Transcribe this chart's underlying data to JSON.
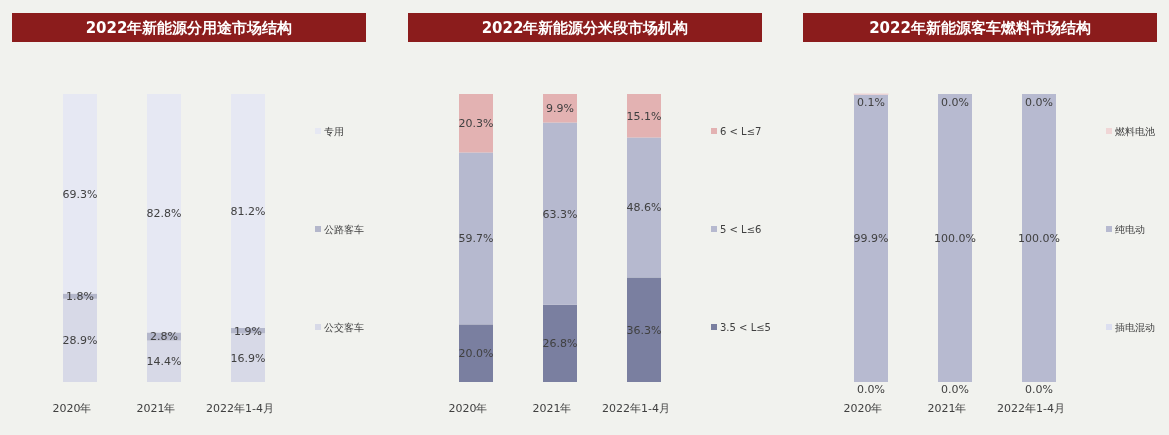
{
  "chart_data": [
    {
      "type": "bar",
      "title": "2022年新能源分用途市场结构",
      "stacked": true,
      "legend": "right",
      "tick_labels": "x",
      "ylim": [
        0,
        100
      ],
      "categories": [
        "2020年",
        "2021年",
        "2022年1-4月"
      ],
      "series": [
        {
          "name": "公交客车",
          "color": "#d7d9e7",
          "values": [
            28.9,
            14.4,
            16.9
          ],
          "value_labels": [
            "28.9%",
            "14.4%",
            "16.9%"
          ]
        },
        {
          "name": "公路客车",
          "color": "#b4b7cb",
          "values": [
            1.8,
            2.8,
            1.9
          ],
          "value_labels": [
            "1.8%",
            "2.8%",
            "1.9%"
          ]
        },
        {
          "name": "专用",
          "color": "#e6e8f3",
          "values": [
            69.3,
            82.8,
            81.2
          ],
          "value_labels": [
            "69.3%",
            "82.8%",
            "81.2%"
          ]
        }
      ]
    },
    {
      "type": "bar",
      "title": "2022年新能源分米段市场机构",
      "stacked": true,
      "legend": "right",
      "tick_labels": "x",
      "ylim": [
        0,
        100
      ],
      "categories": [
        "2020年",
        "2021年",
        "2022年1-4月"
      ],
      "series": [
        {
          "name": "3.5 < L≤5",
          "color": "#7a7fa0",
          "values": [
            20.0,
            26.8,
            36.3
          ],
          "value_labels": [
            "20.0%",
            "26.8%",
            "36.3%"
          ]
        },
        {
          "name": "5 < L≤6",
          "color": "#b6b9cf",
          "values": [
            59.7,
            63.3,
            48.6
          ],
          "value_labels": [
            "59.7%",
            "63.3%",
            "48.6%"
          ]
        },
        {
          "name": "6 < L≤7",
          "color": "#e3b2b2",
          "values": [
            20.3,
            9.9,
            15.1
          ],
          "value_labels": [
            "20.3%",
            "9.9%",
            "15.1%"
          ]
        }
      ]
    },
    {
      "type": "bar",
      "title": "2022年新能源客车燃料市场结构",
      "stacked": true,
      "legend": "right",
      "tick_labels": "x",
      "ylim": [
        0,
        100
      ],
      "categories": [
        "2020年",
        "2021年",
        "2022年1-4月"
      ],
      "series": [
        {
          "name": "插电混动",
          "color": "#dcdff0",
          "values": [
            0.0,
            0.0,
            0.0
          ],
          "value_labels": [
            "0.0%",
            "0.0%",
            "0.0%"
          ]
        },
        {
          "name": "纯电动",
          "color": "#b7bad0",
          "values": [
            99.9,
            100.0,
            100.0
          ],
          "value_labels": [
            "99.9%",
            "100.0%",
            "100.0%"
          ]
        },
        {
          "name": "燃料电池",
          "color": "#f0d6d6",
          "values": [
            0.1,
            0.0,
            0.0
          ],
          "value_labels": [
            "0.1%",
            "0.0%",
            "0.0%"
          ]
        }
      ]
    }
  ]
}
